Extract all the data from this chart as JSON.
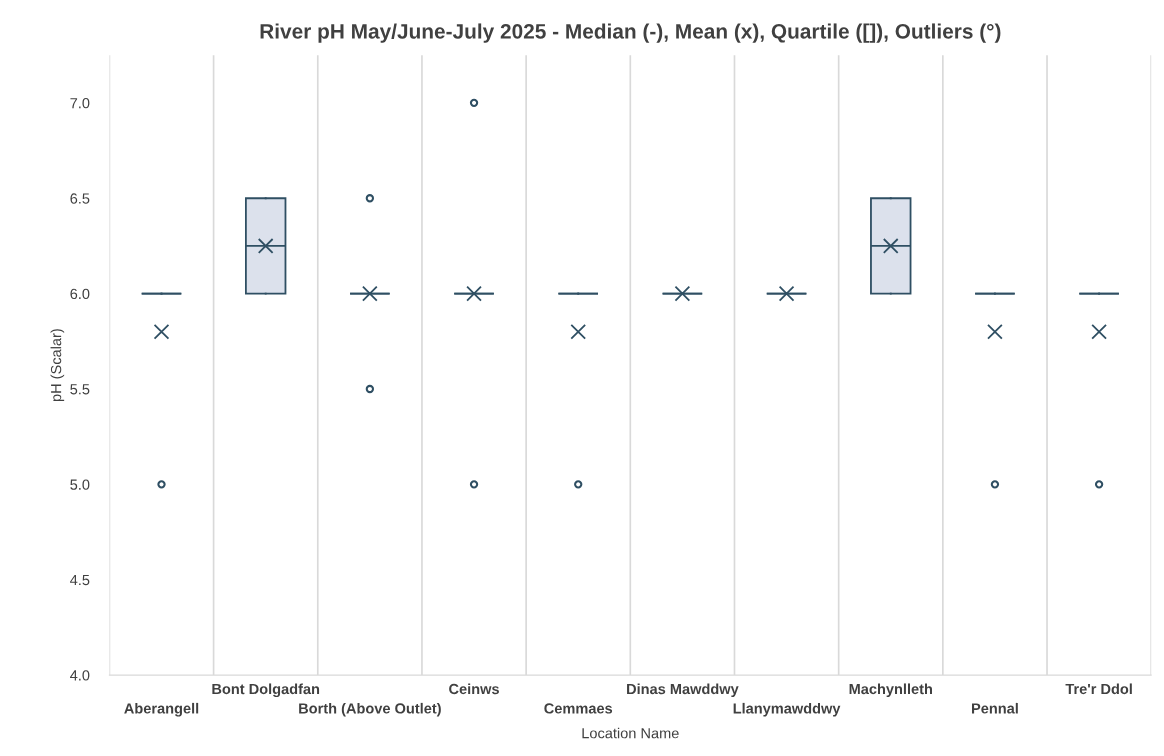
{
  "chart_data": {
    "type": "box",
    "title": "River pH May/June-July 2025 - Median (-), Mean (x), Quartile ([]), Outliers (°)",
    "xlabel": "Location Name",
    "ylabel": "pH (Scalar)",
    "categories": [
      "Aberangell",
      "Bont Dolgadfan",
      "Borth (Above Outlet)",
      "Ceinws",
      "Cemmaes",
      "Dinas Mawddwy",
      "Llanymawddwy",
      "Machynlleth",
      "Pennal",
      "Tre'r Ddol"
    ],
    "boxes": [
      {
        "low": 6,
        "q1": 6,
        "median": 6,
        "q3": 6,
        "high": 6,
        "mean": 5.8,
        "outliers": [
          5
        ]
      },
      {
        "low": 6,
        "q1": 6,
        "median": 6.25,
        "q3": 6.5,
        "high": 6.5,
        "mean": 6.25
      },
      {
        "low": 6,
        "q1": 6,
        "median": 6,
        "q3": 6,
        "high": 6,
        "mean": 6,
        "outliers": [
          5.5,
          6.5
        ]
      },
      {
        "low": 6,
        "q1": 6,
        "median": 6,
        "q3": 6,
        "high": 6,
        "mean": 6,
        "outliers": [
          5,
          7
        ]
      },
      {
        "low": 6,
        "q1": 6,
        "median": 6,
        "q3": 6,
        "high": 6,
        "mean": 5.8,
        "outliers": [
          5
        ]
      },
      {
        "low": 6,
        "q1": 6,
        "median": 6,
        "q3": 6,
        "high": 6,
        "mean": 6
      },
      {
        "low": 6,
        "q1": 6,
        "median": 6,
        "q3": 6,
        "high": 6,
        "mean": 6
      },
      {
        "low": 6,
        "q1": 6,
        "median": 6.25,
        "q3": 6.5,
        "high": 6.5,
        "mean": 6.25
      },
      {
        "low": 6,
        "q1": 6,
        "median": 6,
        "q3": 6,
        "high": 6,
        "mean": 5.8,
        "outliers": [
          5
        ]
      },
      {
        "low": 6,
        "q1": 6,
        "median": 6,
        "q3": 6,
        "high": 6,
        "mean": 5.8,
        "outliers": [
          5
        ]
      }
    ],
    "color": "#2f4f63",
    "ylim": [
      4,
      7.25
    ],
    "yticks": [
      {
        "value": 4,
        "label": "4.0"
      },
      {
        "value": 4.5,
        "label": "4.5"
      },
      {
        "value": 5,
        "label": "5.0"
      },
      {
        "value": 5.5,
        "label": "5.5"
      },
      {
        "value": 6,
        "label": "6.0"
      },
      {
        "value": 6.5,
        "label": "6.5"
      },
      {
        "value": 7,
        "label": "7.0"
      }
    ],
    "grid": "x",
    "legend": false
  }
}
